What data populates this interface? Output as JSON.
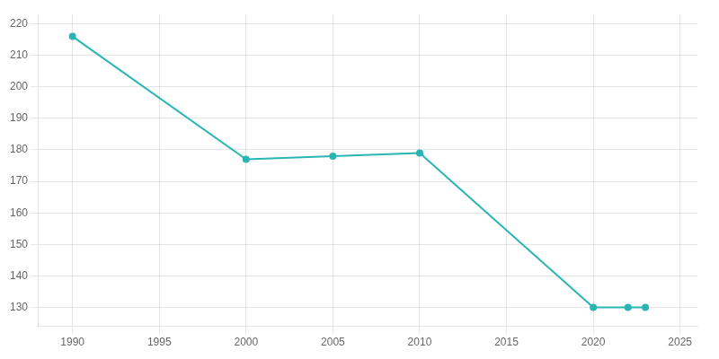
{
  "chart_data": {
    "type": "line",
    "x": [
      1990,
      2000,
      2005,
      2010,
      2020,
      2022,
      2023
    ],
    "values": [
      216,
      177,
      178,
      179,
      130,
      130,
      130
    ],
    "color": "#2ab5b5",
    "marker": "circle",
    "xlim": [
      1988,
      2026
    ],
    "ylim": [
      124,
      223
    ],
    "xticks": [
      1990,
      1995,
      2000,
      2005,
      2010,
      2015,
      2020,
      2025
    ],
    "yticks": [
      130,
      140,
      150,
      160,
      170,
      180,
      190,
      200,
      210,
      220
    ],
    "grid": true
  }
}
